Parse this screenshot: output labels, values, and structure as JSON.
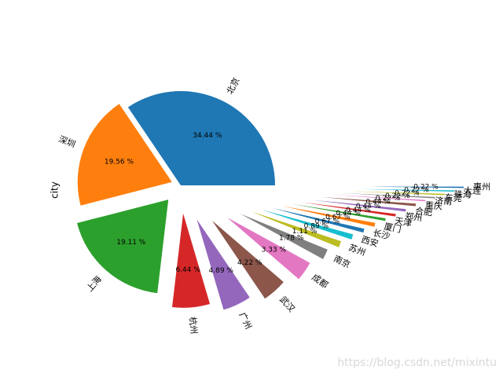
{
  "chart_data": {
    "type": "pie",
    "ylabel": "city",
    "categories": [
      "北京",
      "深圳",
      "上海",
      "杭州",
      "广州",
      "武汉",
      "成都",
      "南京",
      "苏州",
      "西安",
      "长沙",
      "厦门",
      "天津",
      "郑州",
      "合肥",
      "重庆",
      "济南",
      "东莞",
      "珠海",
      "大连",
      "惠州"
    ],
    "values": [
      34.44,
      19.56,
      19.11,
      6.44,
      4.89,
      4.22,
      3.33,
      1.78,
      1.11,
      0.89,
      0.67,
      0.67,
      0.44,
      0.44,
      0.44,
      0.44,
      0.22,
      0.22,
      0.22,
      0.22,
      0.22
    ],
    "value_labels": [
      "34.44 %",
      "19.56 %",
      "19.11 %",
      "6.44 %",
      "4.89 %",
      "4.22 %",
      "3.33 %",
      "1.78 %",
      "1.11 %",
      "0.89 %",
      "0.67 %",
      "0.67 %",
      "0.44 %",
      "0.44 %",
      "0.44 %",
      "0.44 %",
      "0.22 %",
      "0.22 %",
      "0.22 %",
      "0.22 %",
      "0.22 %"
    ],
    "colors": [
      "#1f77b4",
      "#ff7f0e",
      "#2ca02c",
      "#d62728",
      "#9467bd",
      "#8c564b",
      "#e377c2",
      "#7f7f7f",
      "#bcbd22",
      "#17becf"
    ]
  },
  "watermark": "https://blog.csdn.net/mixintu"
}
